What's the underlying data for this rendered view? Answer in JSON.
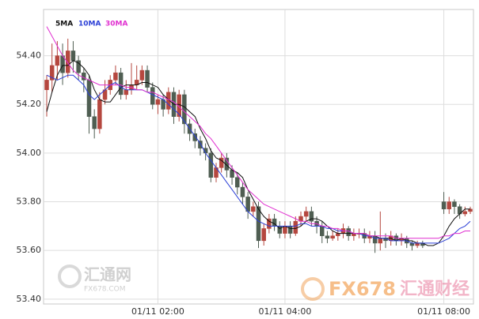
{
  "chart_data": {
    "type": "candlestick",
    "categories": [
      null,
      null,
      null,
      null,
      null,
      null,
      null,
      null,
      null,
      null,
      null,
      null,
      null,
      null,
      null,
      null,
      null,
      null,
      null,
      null,
      null,
      "01/11 02:00",
      null,
      null,
      null,
      null,
      null,
      null,
      null,
      null,
      null,
      null,
      null,
      null,
      null,
      null,
      null,
      null,
      null,
      null,
      null,
      null,
      null,
      null,
      null,
      "01/11 04:00",
      null,
      null,
      null,
      null,
      null,
      null,
      null,
      null,
      null,
      null,
      null,
      null,
      null,
      null,
      null,
      null,
      null,
      null,
      null,
      null,
      null,
      null,
      null,
      null,
      null,
      null,
      null,
      null,
      null,
      "01/11 08:00",
      null,
      null,
      null,
      null,
      null
    ],
    "open": [
      54.26,
      54.3,
      54.36,
      54.4,
      54.33,
      54.42,
      54.38,
      54.33,
      54.3,
      54.15,
      54.1,
      54.22,
      54.26,
      54.3,
      54.33,
      54.24,
      54.26,
      54.28,
      54.3,
      54.34,
      54.27,
      54.2,
      54.22,
      54.18,
      54.25,
      54.15,
      54.24,
      54.12,
      54.08,
      54.05,
      54.02,
      54.0,
      53.9,
      53.94,
      53.98,
      53.93,
      53.9,
      53.86,
      53.82,
      53.76,
      53.78,
      53.64,
      53.69,
      53.73,
      53.7,
      53.67,
      53.7,
      53.67,
      53.72,
      53.74,
      53.76,
      53.72,
      53.7,
      53.66,
      53.65,
      53.66,
      53.67,
      53.69,
      53.66,
      53.67,
      53.67,
      53.65,
      53.66,
      53.63,
      53.65,
      53.64,
      53.66,
      53.64,
      53.65,
      53.63,
      53.62,
      53.63,
      null,
      null,
      null,
      53.8,
      53.77,
      53.8,
      53.78,
      53.75,
      53.76
    ],
    "high": [
      54.32,
      54.45,
      54.46,
      54.45,
      54.47,
      54.46,
      54.4,
      54.35,
      54.32,
      54.18,
      54.25,
      54.3,
      54.32,
      54.36,
      54.35,
      54.3,
      54.37,
      54.36,
      54.36,
      54.36,
      54.29,
      54.24,
      54.24,
      54.27,
      54.27,
      54.26,
      54.26,
      54.14,
      54.1,
      54.07,
      54.04,
      54.02,
      53.96,
      54.0,
      54.0,
      53.95,
      53.92,
      53.88,
      53.84,
      53.8,
      53.8,
      53.71,
      53.75,
      53.75,
      53.72,
      53.72,
      53.72,
      53.74,
      53.76,
      53.78,
      53.78,
      53.74,
      53.72,
      53.68,
      53.68,
      53.69,
      53.71,
      53.7,
      53.69,
      53.69,
      53.69,
      53.68,
      53.68,
      53.76,
      53.67,
      53.68,
      53.67,
      53.67,
      53.66,
      53.64,
      53.64,
      53.64,
      null,
      null,
      null,
      53.84,
      53.82,
      53.81,
      53.79,
      53.78,
      53.78
    ],
    "low": [
      54.15,
      54.25,
      54.3,
      54.28,
      54.31,
      54.33,
      54.3,
      54.25,
      54.08,
      54.06,
      54.08,
      54.2,
      54.24,
      54.28,
      54.22,
      54.22,
      54.24,
      54.26,
      54.28,
      54.25,
      54.18,
      54.16,
      54.15,
      54.16,
      54.12,
      54.13,
      54.08,
      54.05,
      54.02,
      53.99,
      53.97,
      53.88,
      53.88,
      53.92,
      53.9,
      53.87,
      53.83,
      53.79,
      53.73,
      53.74,
      53.61,
      53.62,
      53.67,
      53.68,
      53.65,
      53.65,
      53.65,
      53.66,
      53.7,
      53.72,
      53.7,
      53.67,
      53.63,
      53.63,
      53.64,
      53.64,
      53.65,
      53.64,
      53.64,
      53.65,
      53.63,
      53.63,
      53.59,
      53.6,
      53.61,
      53.62,
      53.62,
      53.62,
      53.61,
      53.6,
      53.61,
      53.61,
      null,
      null,
      null,
      53.75,
      53.75,
      53.75,
      53.73,
      53.74,
      53.75
    ],
    "close": [
      54.3,
      54.36,
      54.4,
      54.33,
      54.42,
      54.38,
      54.33,
      54.3,
      54.15,
      54.1,
      54.22,
      54.26,
      54.3,
      54.33,
      54.24,
      54.26,
      54.28,
      54.3,
      54.34,
      54.27,
      54.2,
      54.22,
      54.18,
      54.25,
      54.15,
      54.24,
      54.12,
      54.08,
      54.05,
      54.02,
      54.0,
      53.9,
      53.94,
      53.98,
      53.93,
      53.9,
      53.86,
      53.82,
      53.76,
      53.78,
      53.64,
      53.69,
      53.73,
      53.7,
      53.67,
      53.7,
      53.67,
      53.72,
      53.74,
      53.76,
      53.72,
      53.7,
      53.66,
      53.65,
      53.66,
      53.67,
      53.69,
      53.66,
      53.67,
      53.67,
      53.65,
      53.66,
      53.63,
      53.65,
      53.64,
      53.66,
      53.64,
      53.65,
      53.63,
      53.62,
      53.63,
      53.62,
      null,
      null,
      null,
      53.77,
      53.8,
      53.78,
      53.75,
      53.76,
      53.77
    ],
    "up_color": "#b5473f",
    "down_color": "#4f5e52",
    "series": [
      {
        "name": "5MA",
        "color": "#111111",
        "values": [
          54.17,
          54.25,
          54.32,
          54.36,
          54.36,
          54.38,
          54.37,
          54.35,
          54.32,
          54.26,
          54.22,
          54.21,
          54.21,
          54.24,
          54.27,
          54.28,
          54.28,
          54.28,
          54.29,
          54.29,
          54.28,
          54.27,
          54.24,
          54.22,
          54.2,
          54.2,
          54.19,
          54.17,
          54.15,
          54.1,
          54.06,
          54.01,
          53.98,
          53.97,
          53.95,
          53.93,
          53.92,
          53.9,
          53.85,
          53.81,
          53.77,
          53.74,
          53.72,
          53.71,
          53.69,
          53.7,
          53.69,
          53.69,
          53.7,
          53.72,
          53.73,
          53.73,
          53.72,
          53.7,
          53.68,
          53.67,
          53.67,
          53.67,
          53.67,
          53.67,
          53.67,
          53.66,
          53.66,
          53.65,
          53.65,
          53.65,
          53.64,
          53.65,
          53.64,
          53.64,
          53.63,
          53.63,
          53.62,
          53.62,
          53.63,
          53.66,
          53.7,
          53.73,
          53.75,
          53.77,
          53.77
        ]
      },
      {
        "name": "10MA",
        "color": "#2b3fd6",
        "values": [
          54.32,
          54.31,
          54.3,
          54.31,
          54.32,
          54.32,
          54.3,
          54.28,
          54.24,
          54.22,
          54.24,
          54.26,
          54.28,
          54.29,
          54.27,
          54.26,
          54.26,
          54.26,
          54.26,
          54.25,
          54.24,
          54.23,
          54.22,
          54.2,
          54.18,
          54.16,
          54.13,
          54.1,
          54.07,
          54.04,
          54.0,
          53.97,
          53.94,
          53.91,
          53.88,
          53.85,
          53.82,
          53.79,
          53.76,
          53.74,
          53.72,
          53.71,
          53.7,
          53.7,
          53.7,
          53.7,
          53.7,
          53.7,
          53.71,
          53.71,
          53.7,
          53.7,
          53.7,
          53.69,
          53.69,
          53.68,
          53.68,
          53.68,
          53.67,
          53.67,
          53.66,
          53.66,
          53.65,
          53.65,
          53.65,
          53.64,
          53.64,
          53.64,
          53.64,
          53.63,
          53.63,
          53.63,
          53.63,
          53.63,
          53.63,
          53.64,
          53.65,
          53.67,
          53.69,
          53.7,
          53.72
        ]
      },
      {
        "name": "30MA",
        "color": "#e02fd0",
        "values": [
          54.52,
          54.48,
          54.44,
          54.4,
          54.37,
          54.34,
          54.32,
          54.31,
          54.3,
          54.29,
          54.28,
          54.28,
          54.28,
          54.28,
          54.28,
          54.27,
          54.27,
          54.26,
          54.26,
          54.25,
          54.25,
          54.24,
          54.23,
          54.22,
          54.21,
          54.19,
          54.17,
          54.15,
          54.13,
          54.11,
          54.08,
          54.06,
          54.03,
          54.0,
          53.97,
          53.94,
          53.91,
          53.88,
          53.85,
          53.83,
          53.81,
          53.79,
          53.78,
          53.77,
          53.76,
          53.75,
          53.74,
          53.73,
          53.72,
          53.72,
          53.71,
          53.71,
          53.7,
          53.7,
          53.69,
          53.69,
          53.68,
          53.68,
          53.67,
          53.67,
          53.67,
          53.66,
          53.66,
          53.66,
          53.66,
          53.66,
          53.65,
          53.65,
          53.65,
          53.65,
          53.65,
          53.65,
          53.65,
          53.65,
          53.65,
          53.66,
          53.66,
          53.67,
          53.67,
          53.68,
          53.68
        ]
      }
    ],
    "ylim": [
      53.38,
      54.59
    ],
    "yticks": [
      {
        "value": 53.4,
        "label": "53.40"
      },
      {
        "value": 53.6,
        "label": "53.60"
      },
      {
        "value": 53.8,
        "label": "53.80"
      },
      {
        "value": 54.0,
        "label": "54.00"
      },
      {
        "value": 54.2,
        "label": "54.20"
      },
      {
        "value": 54.4,
        "label": "54.40"
      }
    ],
    "grid": true,
    "annotations": [
      "汇通网",
      "FX678.COM",
      "FX678",
      "汇通财经"
    ]
  }
}
